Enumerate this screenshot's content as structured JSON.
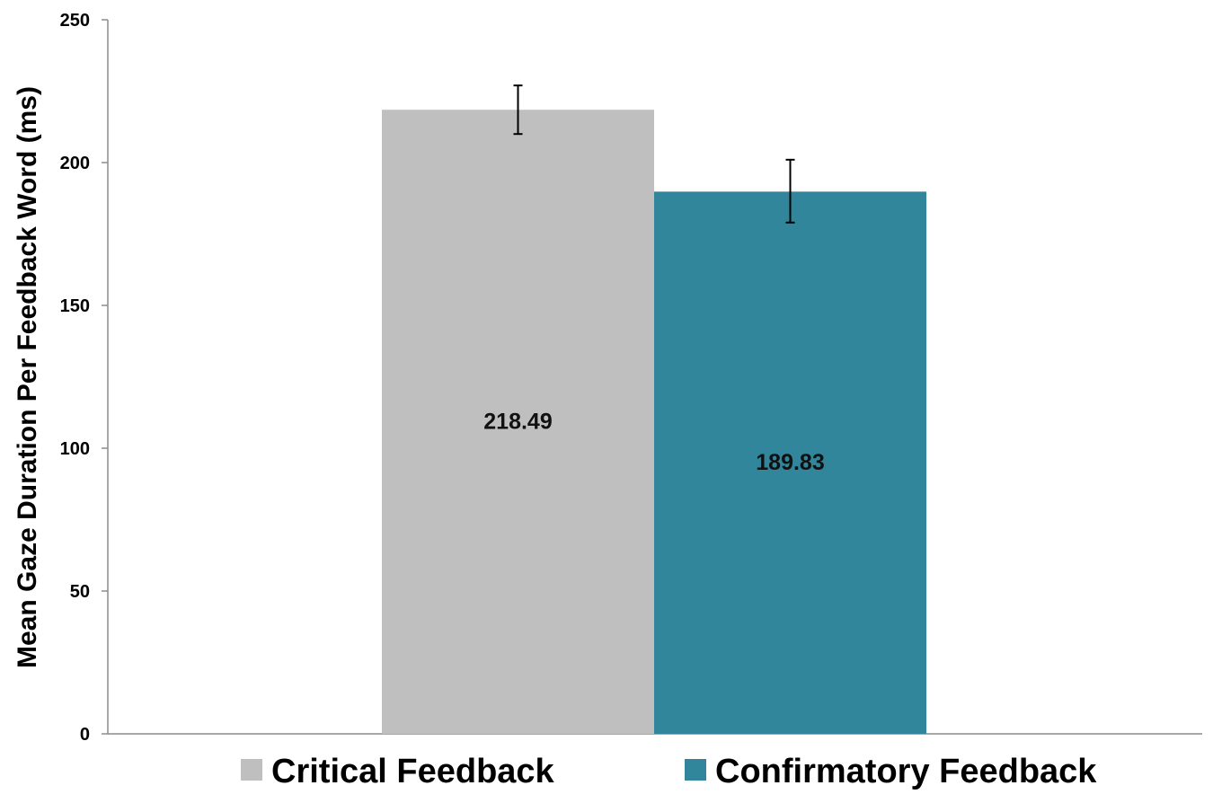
{
  "chart_data": {
    "type": "bar",
    "title": "",
    "xlabel": "",
    "ylabel": "Mean Gaze Duration Per Feedback Word (ms)",
    "ylim": [
      0,
      250
    ],
    "yticks": [
      0,
      50,
      100,
      150,
      200,
      250
    ],
    "grid": false,
    "legend_position": "bottom",
    "series": [
      {
        "name": "Critical Feedback",
        "value": 218.49,
        "label": "218.49",
        "error": [
          210,
          227
        ],
        "color": "#bfbfbf"
      },
      {
        "name": "Confirmatory Feedback",
        "value": 189.83,
        "label": "189.83",
        "error": [
          179,
          201
        ],
        "color": "#31869b"
      }
    ]
  }
}
